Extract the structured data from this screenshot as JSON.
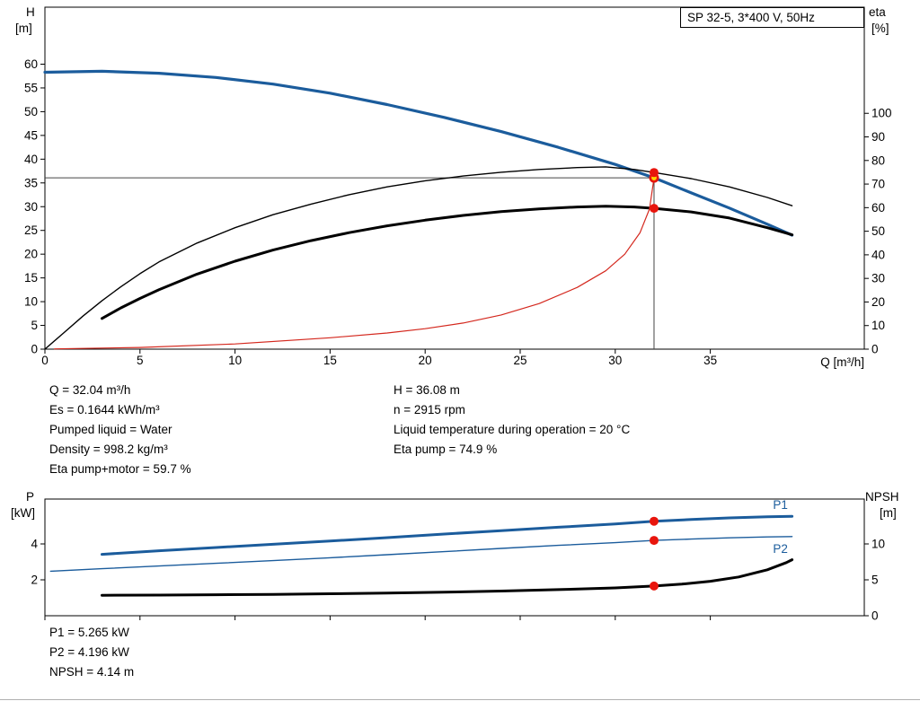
{
  "header": {
    "title_box": "SP 32-5, 3*400 V, 50Hz"
  },
  "operating_point": {
    "q_m3h": 32.04,
    "h_m": 36.08,
    "eta_pump_pct": 74.9,
    "eta_pump_motor_pct": 59.7,
    "p1_kw": 5.265,
    "p2_kw": 4.196,
    "npsh_m": 4.14,
    "n_rpm": 2915
  },
  "info_panel": {
    "left": [
      "Q = 32.04 m³/h",
      "Es = 0.1644 kWh/m³",
      "Pumped liquid = Water",
      "Density = 998.2 kg/m³",
      "Eta pump+motor = 59.7 %"
    ],
    "right": [
      "H = 36.08 m",
      "n = 2915 rpm",
      "Liquid temperature during operation = 20 °C",
      "Eta pump = 74.9 %"
    ]
  },
  "results_panel": [
    "P1 = 5.265 kW",
    "P2 = 4.196 kW",
    "NPSH = 4.14 m"
  ],
  "colors": {
    "curve_blue": "#1b5c9c",
    "curve_black": "#000000",
    "curve_red": "#d4281e",
    "marker_red": "#e8150d",
    "marker_yellow": "#ffd400",
    "duty_line": "#444444"
  },
  "chart_data": [
    {
      "type": "line",
      "title": "SP 32-5, 3*400 V, 50Hz",
      "x_axis": {
        "label": "Q [m³/h]",
        "min": 0,
        "max": 43.1,
        "ticks": [
          0,
          5,
          10,
          15,
          20,
          25,
          30,
          35
        ],
        "show_labels": true
      },
      "y_left": {
        "title_lines": [
          "H",
          "[m]"
        ],
        "min": 0,
        "max": 72,
        "ticks": [
          0,
          5,
          10,
          15,
          20,
          25,
          30,
          35,
          40,
          45,
          50,
          55,
          60
        ]
      },
      "y_right": {
        "title_lines": [
          "eta",
          "[%]"
        ],
        "min": 0,
        "max": 145,
        "ticks": [
          0,
          10,
          20,
          30,
          40,
          50,
          60,
          70,
          80,
          90,
          100
        ]
      },
      "duty_point": {
        "q": 32.04,
        "h": 36.08
      },
      "series": [
        {
          "name": "pump-hq-curve",
          "axis": "left",
          "color": "#1b5c9c",
          "width": 3.2,
          "points": [
            [
              0,
              58.3
            ],
            [
              3,
              58.5
            ],
            [
              6,
              58.1
            ],
            [
              9,
              57.2
            ],
            [
              12,
              55.8
            ],
            [
              15,
              53.9
            ],
            [
              18,
              51.5
            ],
            [
              21,
              48.8
            ],
            [
              24,
              45.8
            ],
            [
              27,
              42.5
            ],
            [
              30,
              38.9
            ],
            [
              32.04,
              36.08
            ],
            [
              34,
              32.9
            ],
            [
              36,
              29.7
            ],
            [
              38,
              26.3
            ],
            [
              39.3,
              24.0
            ]
          ]
        },
        {
          "name": "eta-pump-curve",
          "axis": "right",
          "color": "#000000",
          "width": 1.4,
          "points": [
            [
              0,
              0
            ],
            [
              1,
              7
            ],
            [
              2,
              14
            ],
            [
              3,
              20.5
            ],
            [
              4,
              26.5
            ],
            [
              5,
              32
            ],
            [
              6,
              37
            ],
            [
              8,
              45
            ],
            [
              10,
              51.5
            ],
            [
              12,
              57
            ],
            [
              14,
              61.5
            ],
            [
              16,
              65.5
            ],
            [
              18,
              68.8
            ],
            [
              20,
              71.4
            ],
            [
              22,
              73.4
            ],
            [
              24,
              75
            ],
            [
              26,
              76.2
            ],
            [
              28,
              77
            ],
            [
              29.5,
              77.3
            ],
            [
              31,
              76.2
            ],
            [
              32.04,
              74.9
            ],
            [
              34,
              72.3
            ],
            [
              36,
              68.8
            ],
            [
              38,
              64.3
            ],
            [
              39.3,
              60.8
            ]
          ]
        },
        {
          "name": "eta-pump-motor-curve",
          "axis": "right",
          "color": "#000000",
          "width": 3,
          "points": [
            [
              3,
              13
            ],
            [
              4,
              17.5
            ],
            [
              5,
              21.5
            ],
            [
              6,
              25.2
            ],
            [
              8,
              31.8
            ],
            [
              10,
              37.3
            ],
            [
              12,
              42
            ],
            [
              14,
              46
            ],
            [
              16,
              49.4
            ],
            [
              18,
              52.3
            ],
            [
              20,
              54.7
            ],
            [
              22,
              56.7
            ],
            [
              24,
              58.3
            ],
            [
              26,
              59.5
            ],
            [
              28,
              60.3
            ],
            [
              29.5,
              60.6
            ],
            [
              31,
              60.3
            ],
            [
              32.04,
              59.7
            ],
            [
              34,
              58.2
            ],
            [
              36,
              55.6
            ],
            [
              38,
              51.5
            ],
            [
              39.3,
              48.5
            ]
          ]
        },
        {
          "name": "system-curve",
          "axis": "left",
          "color": "#d4281e",
          "width": 1.2,
          "points": [
            [
              0.5,
              0.05
            ],
            [
              5,
              0.35
            ],
            [
              10,
              1.1
            ],
            [
              15,
              2.4
            ],
            [
              18,
              3.4
            ],
            [
              20,
              4.3
            ],
            [
              22,
              5.5
            ],
            [
              24,
              7.2
            ],
            [
              26,
              9.6
            ],
            [
              28,
              13
            ],
            [
              29.5,
              16.5
            ],
            [
              30.5,
              20
            ],
            [
              31.3,
              24.5
            ],
            [
              31.8,
              29.5
            ],
            [
              32.04,
              36.08
            ]
          ]
        }
      ],
      "markers": [
        {
          "axis": "left",
          "q": 32.04,
          "v": 36.08,
          "style": "duty",
          "fill": "#ffd400",
          "stroke": "#e8150d",
          "name": "duty-point-marker"
        },
        {
          "axis": "right",
          "q": 32.04,
          "v": 74.9,
          "style": "dot",
          "fill": "#e8150d",
          "name": "eta-pump-operating-marker"
        },
        {
          "axis": "right",
          "q": 32.04,
          "v": 59.7,
          "style": "dot",
          "fill": "#e8150d",
          "name": "eta-pump-motor-operating-marker"
        }
      ],
      "series_labels": []
    },
    {
      "type": "line",
      "title": "",
      "x_axis": {
        "label": "",
        "min": 0,
        "max": 43.1,
        "ticks": [
          0,
          5,
          10,
          15,
          20,
          25,
          30,
          35
        ],
        "show_labels": false
      },
      "y_left": {
        "title_lines": [
          "P",
          "[kW]"
        ],
        "min": 0,
        "max": 6.5,
        "ticks": [
          2,
          4
        ]
      },
      "y_right": {
        "title_lines": [
          "NPSH",
          "[m]"
        ],
        "min": 0,
        "max": 16.25,
        "ticks": [
          0,
          5,
          10
        ]
      },
      "series": [
        {
          "name": "p1-power-curve",
          "axis": "left",
          "color": "#1b5c9c",
          "width": 3,
          "points": [
            [
              3,
              3.42
            ],
            [
              6,
              3.62
            ],
            [
              9,
              3.8
            ],
            [
              12,
              3.98
            ],
            [
              15,
              4.16
            ],
            [
              18,
              4.35
            ],
            [
              21,
              4.55
            ],
            [
              24,
              4.74
            ],
            [
              27,
              4.93
            ],
            [
              30,
              5.11
            ],
            [
              32.04,
              5.265
            ],
            [
              34,
              5.36
            ],
            [
              36,
              5.45
            ],
            [
              38,
              5.51
            ],
            [
              39.3,
              5.54
            ]
          ]
        },
        {
          "name": "p2-power-curve",
          "axis": "left",
          "color": "#1b5c9c",
          "width": 1.4,
          "points": [
            [
              0.3,
              2.48
            ],
            [
              3,
              2.62
            ],
            [
              6,
              2.77
            ],
            [
              9,
              2.92
            ],
            [
              12,
              3.07
            ],
            [
              15,
              3.23
            ],
            [
              18,
              3.4
            ],
            [
              21,
              3.57
            ],
            [
              24,
              3.75
            ],
            [
              27,
              3.92
            ],
            [
              30,
              4.07
            ],
            [
              32.04,
              4.196
            ],
            [
              34,
              4.27
            ],
            [
              36,
              4.34
            ],
            [
              38,
              4.39
            ],
            [
              39.3,
              4.41
            ]
          ]
        },
        {
          "name": "npsh-curve",
          "axis": "right",
          "color": "#000000",
          "width": 3,
          "points": [
            [
              3,
              2.85
            ],
            [
              6,
              2.88
            ],
            [
              9,
              2.92
            ],
            [
              12,
              2.98
            ],
            [
              15,
              3.06
            ],
            [
              18,
              3.16
            ],
            [
              21,
              3.28
            ],
            [
              24,
              3.44
            ],
            [
              27,
              3.64
            ],
            [
              30,
              3.88
            ],
            [
              32.04,
              4.14
            ],
            [
              33.5,
              4.4
            ],
            [
              35,
              4.8
            ],
            [
              36.5,
              5.4
            ],
            [
              38,
              6.4
            ],
            [
              39,
              7.4
            ],
            [
              39.3,
              7.8
            ]
          ]
        }
      ],
      "markers": [
        {
          "axis": "left",
          "q": 32.04,
          "v": 5.265,
          "style": "dot",
          "fill": "#e8150d",
          "name": "p1-operating-marker"
        },
        {
          "axis": "left",
          "q": 32.04,
          "v": 4.196,
          "style": "dot",
          "fill": "#e8150d",
          "name": "p2-operating-marker"
        },
        {
          "axis": "right",
          "q": 32.04,
          "v": 4.14,
          "style": "dot",
          "fill": "#e8150d",
          "name": "npsh-operating-marker"
        }
      ],
      "series_labels": [
        {
          "name": "p1-curve-label",
          "text": "P1",
          "axis": "left",
          "q": 38.3,
          "v": 5.95,
          "color": "#1b5c9c"
        },
        {
          "name": "p2-curve-label",
          "text": "P2",
          "axis": "left",
          "q": 38.3,
          "v": 3.5,
          "color": "#1b5c9c"
        }
      ]
    }
  ]
}
